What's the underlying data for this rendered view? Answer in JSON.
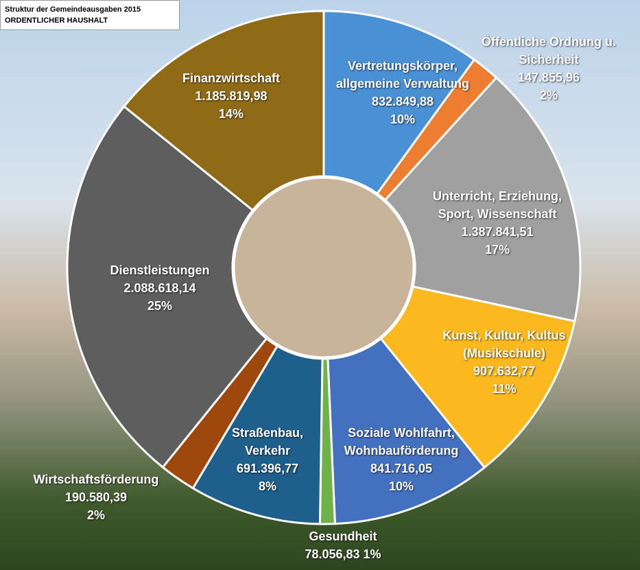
{
  "chart_data": {
    "type": "donut",
    "title": "Struktur der Gemeindeausgaben 2015",
    "subtitle": "ORDENTLICHER HAUSHALT",
    "categories": [
      "Vertretungskörper, allgemeine Verwaltung",
      "Öffentliche Ordnung u. Sicherheit",
      "Unterricht, Erziehung, Sport, Wissenschaft",
      "Kunst, Kultur, Kultus (Musikschule)",
      "Soziale Wohlfahrt, Wohnbauförderung",
      "Gesundheit",
      "Straßenbau, Verkehr",
      "Wirtschaftsförderung",
      "Dienstleistungen",
      "Finanzwirtschaft"
    ],
    "values": [
      832849.88,
      147855.96,
      1387841.51,
      907632.77,
      841716.05,
      78056.83,
      691396.77,
      190580.39,
      2088618.14,
      1185819.98
    ],
    "value_labels": [
      "832.849,88",
      "147.855,96",
      "1.387.841,51",
      "907.632,77",
      "841.716,05",
      "78.056,83",
      "691.396,77",
      "190.580,39",
      "2.088.618,14",
      "1.185.819,98"
    ],
    "percentages": [
      10,
      2,
      17,
      11,
      10,
      1,
      8,
      2,
      25,
      14
    ],
    "percentage_labels": [
      "10%",
      "2%",
      "17%",
      "11%",
      "10%",
      "1%",
      "8%",
      "2%",
      "25%",
      "14%"
    ],
    "colors": [
      "#4a90d4",
      "#ed7d31",
      "#a0a0a0",
      "#fbb91f",
      "#4470c0",
      "#6fb24a",
      "#1f5f8b",
      "#9e480e",
      "#5e5e5e",
      "#8f6b17"
    ]
  }
}
